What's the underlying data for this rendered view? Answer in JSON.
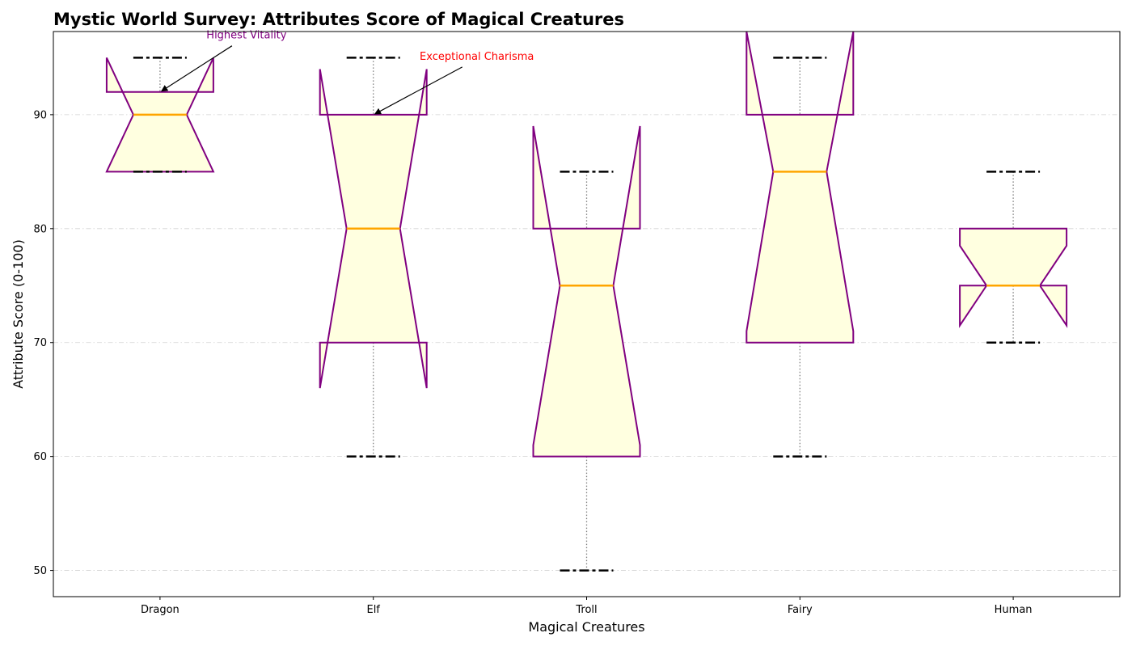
{
  "chart_data": {
    "type": "box",
    "title": "Mystic World Survey: Attributes Score of Magical Creatures",
    "xlabel": "Magical Creatures",
    "ylabel": "Attribute Score (0-100)",
    "ylim": [
      47.7,
      97.3
    ],
    "yticks": [
      50,
      60,
      70,
      80,
      90
    ],
    "grid": {
      "y": true,
      "x": false
    },
    "categories": [
      "Dragon",
      "Elf",
      "Troll",
      "Fairy",
      "Human"
    ],
    "boxes": [
      {
        "name": "Dragon",
        "whisker_low": 85,
        "q1": 85,
        "median": 90,
        "q3": 92,
        "whisker_high": 95,
        "notch_low": 85,
        "notch_high": 95
      },
      {
        "name": "Elf",
        "whisker_low": 60,
        "q1": 70,
        "median": 80,
        "q3": 90,
        "whisker_high": 95,
        "notch_low": 66,
        "notch_high": 94
      },
      {
        "name": "Troll",
        "whisker_low": 50,
        "q1": 60,
        "median": 75,
        "q3": 80,
        "whisker_high": 85,
        "notch_low": 61,
        "notch_high": 89
      },
      {
        "name": "Fairy",
        "whisker_low": 60,
        "q1": 70,
        "median": 85,
        "q3": 90,
        "whisker_high": 95,
        "notch_low": 71,
        "notch_high": 99
      },
      {
        "name": "Human",
        "whisker_low": 70,
        "q1": 75,
        "median": 75,
        "q3": 80,
        "whisker_high": 85,
        "notch_low": 71.5,
        "notch_high": 78.5
      }
    ],
    "annotations": [
      {
        "text": "Highest Vitality",
        "category": "Dragon",
        "value": 92,
        "color": "#800080"
      },
      {
        "text": "Exceptional Charisma",
        "category": "Elf",
        "value": 90,
        "color": "#ff0000"
      }
    ],
    "colors": {
      "box_edge": "#800080",
      "box_fill": "#ffffe0",
      "median": "#ffa500",
      "whisker": "#808080",
      "cap": "#000000",
      "grid": "#d3d3d3"
    }
  }
}
